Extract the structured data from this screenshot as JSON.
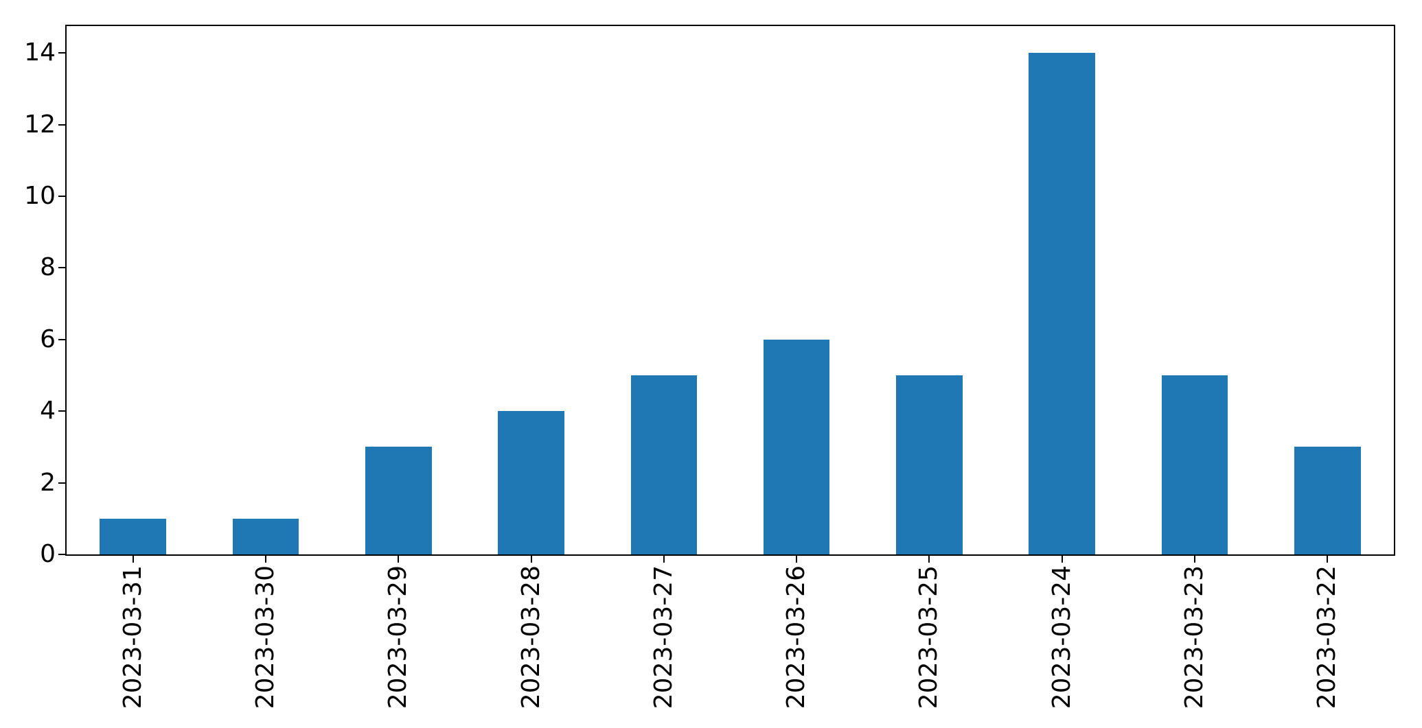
{
  "figure": {
    "background": "#ffffff"
  },
  "chart_data": {
    "type": "bar",
    "categories": [
      "2023-03-31",
      "2023-03-30",
      "2023-03-29",
      "2023-03-28",
      "2023-03-27",
      "2023-03-26",
      "2023-03-25",
      "2023-03-24",
      "2023-03-23",
      "2023-03-22"
    ],
    "values": [
      1,
      1,
      3,
      4,
      5,
      6,
      5,
      14,
      5,
      3
    ],
    "title": "",
    "xlabel": "",
    "ylabel": "",
    "yticks": [
      0,
      2,
      4,
      6,
      8,
      10,
      12,
      14
    ],
    "ylim": [
      0,
      14.75
    ],
    "x_tick_rotation_deg": 90,
    "grid": false,
    "legend": false,
    "bar_color": "#1f77b4",
    "axis_color": "#000000",
    "tick_label_color": "#000000"
  }
}
